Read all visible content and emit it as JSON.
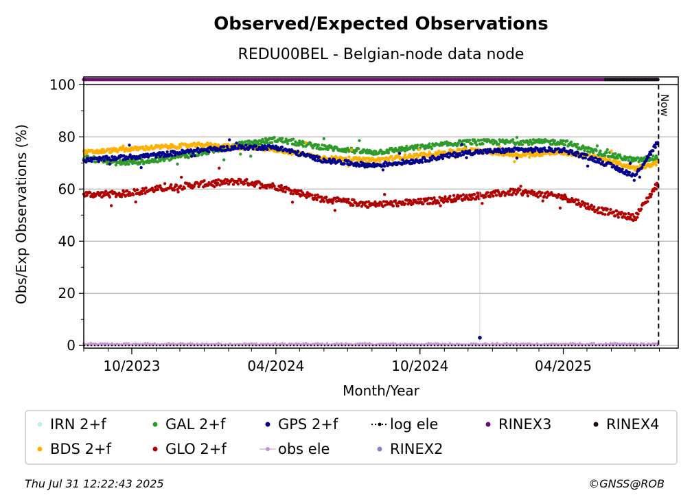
{
  "title": "Observed/Expected Observations",
  "subtitle": "REDU00BEL - Belgian-node data node",
  "xlabel": "Month/Year",
  "ylabel": "Obs/Exp Observations (%)",
  "now_label": "Now",
  "footer": {
    "timestamp": "Thu Jul 31 12:22:43 2025",
    "copyright": "©GNSS@ROB"
  },
  "colors": {
    "irn": "#b9f1f5",
    "bds": "#ffb000",
    "gal": "#2e9a2a",
    "glo": "#b00000",
    "gps": "#00008b",
    "obs_ele": "#c58fd6",
    "log_ele": "#000000",
    "rinex2": "#8a7fc6",
    "rinex3": "#6a0f6a",
    "rinex4": "#1a0a1a"
  },
  "legend": [
    {
      "label": "IRN 2+f",
      "key": "irn",
      "style": "dot"
    },
    {
      "label": "GAL 2+f",
      "key": "gal",
      "style": "dot"
    },
    {
      "label": "GPS 2+f",
      "key": "gps",
      "style": "dot"
    },
    {
      "label": "log ele",
      "key": "log_ele",
      "style": "dotted-line"
    },
    {
      "label": "RINEX3",
      "key": "rinex3",
      "style": "dot"
    },
    {
      "label": "RINEX4",
      "key": "rinex4",
      "style": "dot"
    },
    {
      "label": "BDS 2+f",
      "key": "bds",
      "style": "dot"
    },
    {
      "label": "GLO 2+f",
      "key": "glo",
      "style": "dot"
    },
    {
      "label": "obs ele",
      "key": "obs_ele",
      "style": "line-dot"
    },
    {
      "label": "RINEX2",
      "key": "rinex2",
      "style": "dot"
    }
  ],
  "chart_data": {
    "type": "scatter",
    "title": "Observed/Expected Observations",
    "subtitle": "REDU00BEL - Belgian-node data node",
    "xlabel": "Month/Year",
    "ylabel": "Obs/Exp Observations (%)",
    "xlim": [
      "2023-08-01",
      "2025-08-25"
    ],
    "ylim": [
      -1,
      103
    ],
    "x_ticks": [
      {
        "date": "2023-10-01",
        "label": "10/2023"
      },
      {
        "date": "2024-04-01",
        "label": "04/2024"
      },
      {
        "date": "2024-10-01",
        "label": "10/2024"
      },
      {
        "date": "2025-04-01",
        "label": "04/2025"
      }
    ],
    "y_ticks": [
      0,
      20,
      40,
      60,
      80,
      100
    ],
    "grid": "horizontal",
    "now_date": "2025-07-31",
    "legend_position": "bottom",
    "series": [
      {
        "name": "BDS 2+f",
        "key": "bds",
        "points": [
          [
            "2023-08-01",
            74
          ],
          [
            "2023-09-15",
            75
          ],
          [
            "2023-11-01",
            76
          ],
          [
            "2024-01-01",
            77
          ],
          [
            "2024-02-15",
            76
          ],
          [
            "2024-04-01",
            75
          ],
          [
            "2024-06-01",
            72
          ],
          [
            "2024-08-01",
            71
          ],
          [
            "2024-10-01",
            73
          ],
          [
            "2024-12-01",
            75
          ],
          [
            "2025-02-01",
            73
          ],
          [
            "2025-04-01",
            74
          ],
          [
            "2025-05-15",
            72
          ],
          [
            "2025-07-01",
            68
          ],
          [
            "2025-07-30",
            70
          ]
        ]
      },
      {
        "name": "GAL 2+f",
        "key": "gal",
        "points": [
          [
            "2023-08-01",
            72
          ],
          [
            "2023-09-15",
            70
          ],
          [
            "2023-11-01",
            71
          ],
          [
            "2024-01-01",
            74
          ],
          [
            "2024-02-15",
            77
          ],
          [
            "2024-04-01",
            79
          ],
          [
            "2024-06-01",
            76
          ],
          [
            "2024-08-01",
            74
          ],
          [
            "2024-10-01",
            76
          ],
          [
            "2024-12-01",
            78
          ],
          [
            "2025-02-01",
            78
          ],
          [
            "2025-04-01",
            78
          ],
          [
            "2025-05-15",
            74
          ],
          [
            "2025-07-01",
            71
          ],
          [
            "2025-07-30",
            72
          ]
        ]
      },
      {
        "name": "GPS 2+f",
        "key": "gps",
        "points": [
          [
            "2023-08-01",
            71
          ],
          [
            "2023-09-15",
            72
          ],
          [
            "2023-11-01",
            73
          ],
          [
            "2024-01-01",
            75
          ],
          [
            "2024-02-15",
            76
          ],
          [
            "2024-04-01",
            76
          ],
          [
            "2024-06-01",
            71
          ],
          [
            "2024-08-01",
            69
          ],
          [
            "2024-10-01",
            71
          ],
          [
            "2024-12-01",
            74
          ],
          [
            "2025-02-01",
            75
          ],
          [
            "2025-04-01",
            75
          ],
          [
            "2025-05-15",
            71
          ],
          [
            "2025-07-01",
            65
          ],
          [
            "2025-07-30",
            78
          ]
        ]
      },
      {
        "name": "GLO 2+f",
        "key": "glo",
        "points": [
          [
            "2023-08-01",
            58
          ],
          [
            "2023-09-15",
            58
          ],
          [
            "2023-11-01",
            60
          ],
          [
            "2024-01-01",
            62
          ],
          [
            "2024-02-15",
            63
          ],
          [
            "2024-04-01",
            61
          ],
          [
            "2024-06-01",
            56
          ],
          [
            "2024-08-01",
            54
          ],
          [
            "2024-10-01",
            55
          ],
          [
            "2024-12-01",
            57
          ],
          [
            "2025-02-01",
            59
          ],
          [
            "2025-04-01",
            57
          ],
          [
            "2025-05-15",
            52
          ],
          [
            "2025-07-01",
            49
          ],
          [
            "2025-07-30",
            62
          ]
        ]
      },
      {
        "name": "IRN 2+f",
        "key": "irn",
        "points": []
      },
      {
        "name": "obs ele",
        "key": "obs_ele",
        "points": [
          [
            "2023-08-01",
            0.3
          ],
          [
            "2025-07-30",
            0.3
          ]
        ]
      },
      {
        "name": "log ele",
        "key": "log_ele",
        "points": [
          [
            "2023-08-01",
            0
          ],
          [
            "2025-07-30",
            0
          ]
        ]
      },
      {
        "name": "RINEX3",
        "key": "rinex3",
        "points": [
          [
            "2023-08-01",
            102
          ],
          [
            "2025-05-25",
            102
          ]
        ]
      },
      {
        "name": "RINEX4",
        "key": "rinex4",
        "points": [
          [
            "2025-05-25",
            102
          ],
          [
            "2025-07-30",
            102
          ]
        ]
      },
      {
        "name": "RINEX2",
        "key": "rinex2",
        "points": []
      }
    ]
  }
}
